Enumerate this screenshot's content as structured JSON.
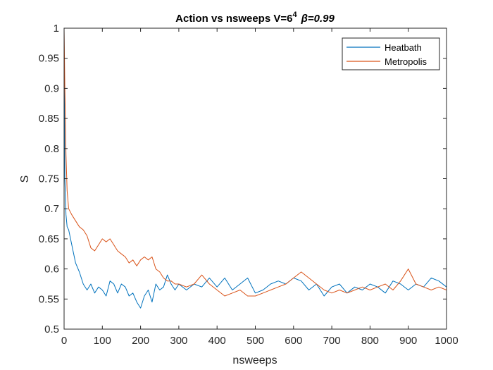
{
  "chart_data": {
    "type": "line",
    "title": "Action vs nsweeps V=6",
    "title_sup": "4",
    "title_beta": "β=0.99",
    "xlabel": "nsweeps",
    "ylabel": "S",
    "xlim": [
      0,
      1000
    ],
    "ylim": [
      0.5,
      1
    ],
    "xticks": [
      0,
      100,
      200,
      300,
      400,
      500,
      600,
      700,
      800,
      900,
      1000
    ],
    "yticks": [
      0.5,
      0.55,
      0.6,
      0.65,
      0.7,
      0.75,
      0.8,
      0.85,
      0.9,
      0.95,
      1
    ],
    "xtick_labels": [
      "0",
      "100",
      "200",
      "300",
      "400",
      "500",
      "600",
      "700",
      "800",
      "900",
      "1000"
    ],
    "ytick_labels": [
      "0.5",
      "0.55",
      "0.6",
      "0.65",
      "0.7",
      "0.75",
      "0.8",
      "0.85",
      "0.9",
      "0.95",
      "1"
    ],
    "legend_position": "top-right",
    "grid": false,
    "series": [
      {
        "name": "Heatbath",
        "color": "#0072BD",
        "x": [
          0,
          2,
          5,
          8,
          12,
          20,
          30,
          40,
          50,
          60,
          70,
          80,
          90,
          100,
          110,
          120,
          130,
          140,
          150,
          160,
          170,
          180,
          190,
          200,
          210,
          220,
          230,
          240,
          250,
          260,
          270,
          280,
          290,
          300,
          320,
          340,
          360,
          380,
          400,
          420,
          440,
          460,
          480,
          500,
          520,
          540,
          560,
          580,
          600,
          620,
          640,
          660,
          680,
          700,
          720,
          740,
          760,
          780,
          800,
          820,
          840,
          860,
          880,
          900,
          920,
          940,
          960,
          980,
          1000
        ],
        "y": [
          1.0,
          0.75,
          0.69,
          0.67,
          0.665,
          0.64,
          0.61,
          0.595,
          0.575,
          0.565,
          0.575,
          0.56,
          0.57,
          0.565,
          0.555,
          0.58,
          0.575,
          0.56,
          0.575,
          0.57,
          0.555,
          0.56,
          0.545,
          0.535,
          0.555,
          0.565,
          0.545,
          0.575,
          0.565,
          0.57,
          0.59,
          0.575,
          0.565,
          0.575,
          0.565,
          0.575,
          0.57,
          0.585,
          0.57,
          0.585,
          0.565,
          0.575,
          0.585,
          0.56,
          0.565,
          0.575,
          0.58,
          0.575,
          0.585,
          0.58,
          0.565,
          0.575,
          0.555,
          0.57,
          0.575,
          0.56,
          0.57,
          0.565,
          0.575,
          0.57,
          0.56,
          0.58,
          0.575,
          0.565,
          0.575,
          0.57,
          0.585,
          0.58,
          0.57
        ]
      },
      {
        "name": "Metropolis",
        "color": "#D95319",
        "x": [
          0,
          2,
          5,
          8,
          12,
          20,
          30,
          40,
          50,
          60,
          70,
          80,
          90,
          100,
          110,
          120,
          130,
          140,
          150,
          160,
          170,
          180,
          190,
          200,
          210,
          220,
          230,
          240,
          250,
          260,
          270,
          280,
          290,
          300,
          320,
          340,
          360,
          380,
          400,
          420,
          440,
          460,
          480,
          500,
          520,
          540,
          560,
          580,
          600,
          620,
          640,
          660,
          680,
          700,
          720,
          740,
          760,
          780,
          800,
          820,
          840,
          860,
          880,
          900,
          920,
          940,
          960,
          980,
          1000
        ],
        "y": [
          1.0,
          0.9,
          0.79,
          0.73,
          0.7,
          0.69,
          0.68,
          0.67,
          0.665,
          0.655,
          0.635,
          0.63,
          0.64,
          0.65,
          0.645,
          0.65,
          0.64,
          0.63,
          0.625,
          0.62,
          0.61,
          0.615,
          0.605,
          0.615,
          0.62,
          0.615,
          0.62,
          0.6,
          0.595,
          0.585,
          0.58,
          0.58,
          0.575,
          0.575,
          0.57,
          0.575,
          0.59,
          0.575,
          0.565,
          0.555,
          0.56,
          0.565,
          0.555,
          0.555,
          0.56,
          0.565,
          0.57,
          0.575,
          0.585,
          0.595,
          0.585,
          0.575,
          0.565,
          0.56,
          0.565,
          0.56,
          0.565,
          0.57,
          0.565,
          0.57,
          0.575,
          0.565,
          0.58,
          0.6,
          0.575,
          0.57,
          0.565,
          0.57,
          0.565
        ]
      }
    ]
  }
}
